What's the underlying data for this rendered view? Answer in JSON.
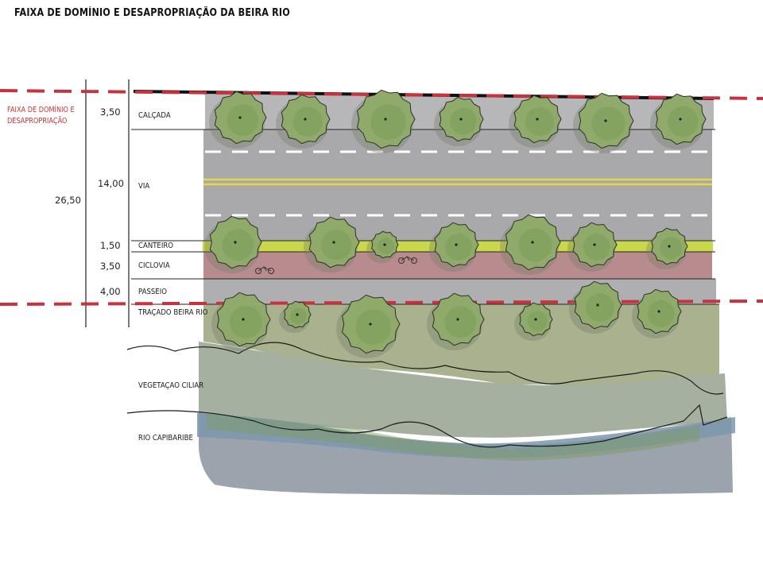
{
  "title": "FAIXA DE DOMÍNIO E DESAPROPRIAÇÃO DA BEIRA RIO",
  "faixa_label": "FAIXA DE DOMÍNIO E DESAPROPRIAÇÃO",
  "total_width": "26,50",
  "bands": [
    {
      "label": "CALÇADA",
      "dimension": "3,50"
    },
    {
      "label": "VIA",
      "dimension": "14,00"
    },
    {
      "label": "CANTEIRO",
      "dimension": "1,50"
    },
    {
      "label": "CICLOVIA",
      "dimension": "3,50"
    },
    {
      "label": "PASSEIO",
      "dimension": "4,00"
    },
    {
      "label": "TRAÇADO BEIRA RIO",
      "dimension": ""
    },
    {
      "label": "VEGETAÇÃO CILIAR",
      "dimension": ""
    },
    {
      "label": "RIO CAPIBARIBE",
      "dimension": ""
    }
  ],
  "colors": {
    "boundary_dash": "#c8323c",
    "road": "#a9a9ab",
    "calcada": "#b7b7ba",
    "canteiro": "#c9d84a",
    "ciclovia": "#b88c8e",
    "vegetation": "#a9b196",
    "river": "#7d98ad",
    "tree": "#8faa6a",
    "yellow_line": "#e7d84a"
  }
}
